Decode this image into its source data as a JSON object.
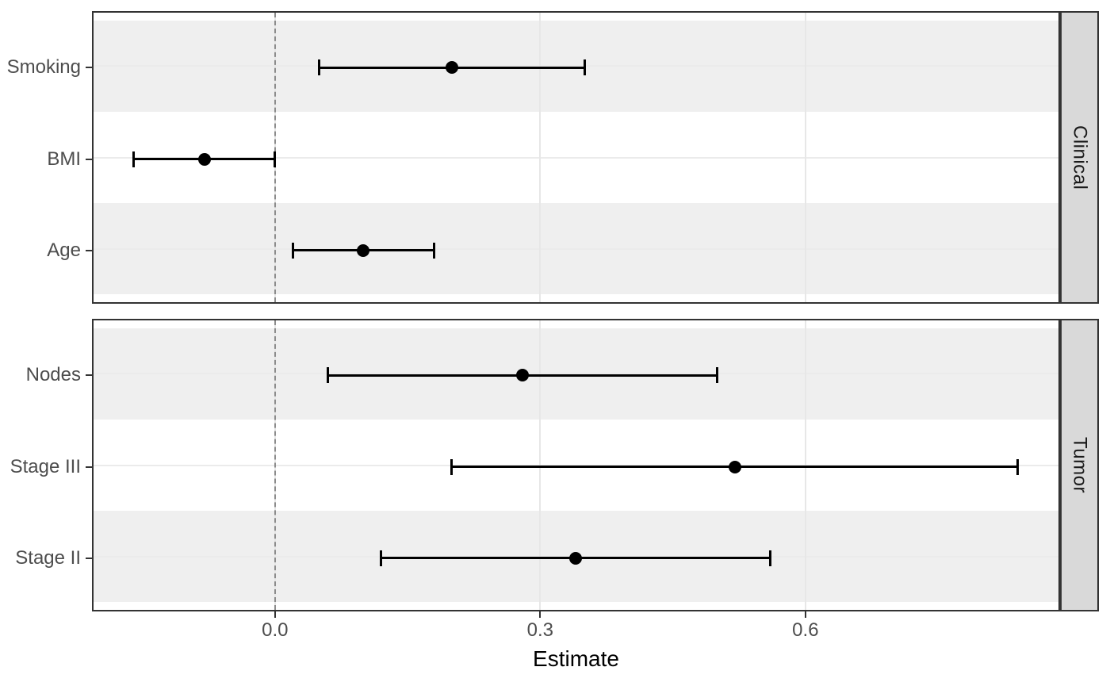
{
  "chart_data": {
    "type": "scatter",
    "subtype": "forest_plot_pointrange",
    "title": "",
    "xlabel": "Estimate",
    "ylabel": "",
    "xlim": [
      -0.207,
      0.888
    ],
    "x_ticks": [
      0.0,
      0.3,
      0.6
    ],
    "x_tick_labels": [
      "0.0",
      "0.3",
      "0.6"
    ],
    "reference_line_x": 0,
    "grid": true,
    "legend_position": "none",
    "facet_side": "right",
    "facets": [
      {
        "label": "Clinical",
        "rows": [
          {
            "term": "Smoking",
            "estimate": 0.2,
            "conf_low": 0.05,
            "conf_high": 0.35
          },
          {
            "term": "BMI",
            "estimate": -0.08,
            "conf_low": -0.16,
            "conf_high": 0.0
          },
          {
            "term": "Age",
            "estimate": 0.1,
            "conf_low": 0.02,
            "conf_high": 0.18
          }
        ]
      },
      {
        "label": "Tumor",
        "rows": [
          {
            "term": "Nodes",
            "estimate": 0.28,
            "conf_low": 0.06,
            "conf_high": 0.5
          },
          {
            "term": "Stage III",
            "estimate": 0.52,
            "conf_low": 0.2,
            "conf_high": 0.84
          },
          {
            "term": "Stage II",
            "estimate": 0.34,
            "conf_low": 0.12,
            "conf_high": 0.56
          }
        ]
      }
    ],
    "colors": {
      "panel_border": "#333333",
      "band_fill": "#efefef",
      "grid_major": "#ebebeb",
      "reference_line": "#8c8c8c",
      "point_and_range": "#000000",
      "strip_fill": "#d9d9d9",
      "tick_label": "#4d4d4d",
      "axis_title": "#000000"
    }
  }
}
